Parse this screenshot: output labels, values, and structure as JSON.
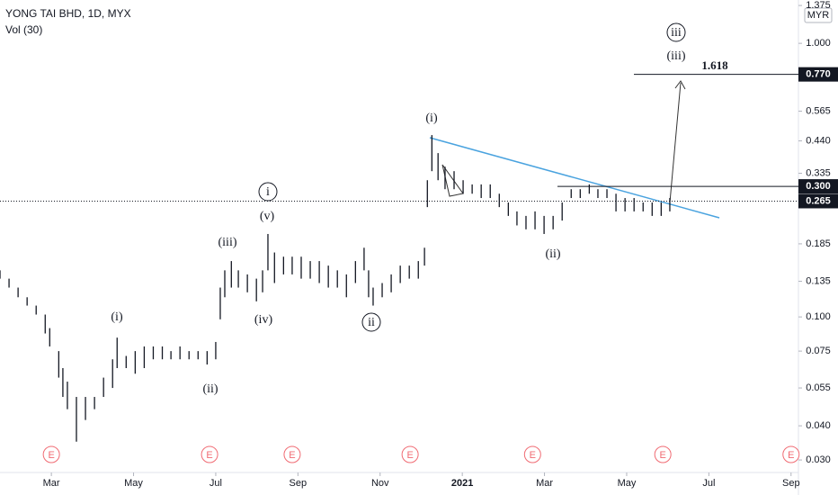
{
  "chart_data": {
    "type": "ohlc",
    "title": "YONG TAI BHD, 1D, MYX",
    "subtitle": "Vol (30)",
    "currency": "MYR",
    "log_scale": true,
    "grid": false,
    "color": "#131722",
    "trend_color": "#4aa3df",
    "ylim": [
      0.027,
      1.44
    ],
    "yticks": [
      {
        "value": 1.375,
        "label": "1.375"
      },
      {
        "value": 1,
        "label": "1.000"
      },
      0.565,
      {
        "value": 0.44,
        "label": "0.440"
      },
      0.335,
      0.185,
      0.135,
      {
        "value": 0.1,
        "label": "0.100"
      },
      0.075,
      0.055,
      {
        "value": 0.04,
        "label": "0.040"
      },
      {
        "value": 0.03,
        "label": "0.030"
      }
    ],
    "xlim": [
      0.75,
      20.18
    ],
    "xticks": [
      {
        "value": 2,
        "label": "Mar"
      },
      {
        "value": 4,
        "label": "May"
      },
      {
        "value": 6,
        "label": "Jul"
      },
      {
        "value": 8,
        "label": "Sep"
      },
      {
        "value": 10,
        "label": "Nov"
      },
      {
        "value": 12,
        "label": "2021"
      },
      {
        "value": 14,
        "label": "Mar"
      },
      {
        "value": 16,
        "label": "May"
      },
      {
        "value": 18,
        "label": "Jul"
      },
      {
        "value": 20,
        "label": "Sep"
      }
    ],
    "x": [
      0.75,
      0.97,
      1.19,
      1.41,
      1.63,
      1.85,
      1.96,
      2.18,
      2.28,
      2.39,
      2.61,
      2.83,
      3.05,
      3.27,
      3.49,
      3.6,
      3.82,
      4.04,
      4.26,
      4.48,
      4.7,
      4.91,
      5.13,
      5.35,
      5.57,
      5.79,
      6.0,
      6.11,
      6.22,
      6.38,
      6.55,
      6.77,
      6.99,
      7.14,
      7.27,
      7.43,
      7.65,
      7.86,
      8.08,
      8.3,
      8.52,
      8.74,
      8.96,
      9.18,
      9.4,
      9.61,
      9.72,
      9.83,
      10.05,
      10.27,
      10.49,
      10.71,
      10.93,
      11.08,
      11.15,
      11.26,
      11.41,
      11.58,
      11.8,
      12.02,
      12.24,
      12.46,
      12.68,
      12.9,
      13.12,
      13.33,
      13.55,
      13.77,
      13.99,
      14.21,
      14.43,
      14.65,
      14.87,
      15.09,
      15.3,
      15.52,
      15.74,
      15.96,
      16.18,
      16.4,
      16.62,
      16.84,
      17.05
    ],
    "high": [
      0.148,
      0.138,
      0.128,
      0.118,
      0.11,
      0.102,
      0.091,
      0.075,
      0.065,
      0.058,
      0.051,
      0.051,
      0.051,
      0.06,
      0.07,
      0.084,
      0.072,
      0.075,
      0.078,
      0.078,
      0.078,
      0.075,
      0.078,
      0.075,
      0.075,
      0.075,
      0.081,
      0.128,
      0.148,
      0.16,
      0.148,
      0.143,
      0.138,
      0.148,
      0.201,
      0.172,
      0.166,
      0.166,
      0.166,
      0.16,
      0.16,
      0.154,
      0.148,
      0.143,
      0.16,
      0.179,
      0.148,
      0.128,
      0.133,
      0.143,
      0.154,
      0.154,
      0.16,
      0.179,
      0.316,
      0.462,
      0.397,
      0.354,
      0.341,
      0.316,
      0.305,
      0.305,
      0.305,
      0.282,
      0.262,
      0.243,
      0.234,
      0.243,
      0.234,
      0.234,
      0.262,
      0.293,
      0.293,
      0.305,
      0.293,
      0.293,
      0.282,
      0.272,
      0.272,
      0.262,
      0.262,
      0.262,
      0.272
    ],
    "low": [
      0.138,
      0.128,
      0.118,
      0.11,
      0.102,
      0.087,
      0.078,
      0.06,
      0.051,
      0.046,
      0.035,
      0.042,
      0.046,
      0.051,
      0.055,
      0.065,
      0.065,
      0.062,
      0.065,
      0.07,
      0.07,
      0.07,
      0.07,
      0.07,
      0.07,
      0.067,
      0.07,
      0.098,
      0.118,
      0.128,
      0.128,
      0.123,
      0.114,
      0.123,
      0.148,
      0.133,
      0.143,
      0.143,
      0.138,
      0.138,
      0.133,
      0.128,
      0.128,
      0.118,
      0.133,
      0.148,
      0.118,
      0.11,
      0.118,
      0.123,
      0.133,
      0.138,
      0.138,
      0.154,
      0.252,
      0.341,
      0.316,
      0.293,
      0.293,
      0.282,
      0.282,
      0.272,
      0.272,
      0.252,
      0.234,
      0.216,
      0.209,
      0.209,
      0.201,
      0.209,
      0.225,
      0.272,
      0.272,
      0.282,
      0.272,
      0.272,
      0.243,
      0.243,
      0.243,
      0.243,
      0.234,
      0.234,
      0.243
    ],
    "levels": [
      {
        "value": 0.77,
        "label": "0.770"
      },
      {
        "value": 0.3,
        "label": "0.300"
      },
      {
        "value": 0.265,
        "label": "0.265"
      }
    ],
    "earnings_label": "E",
    "earnings_x": [
      2.0,
      5.85,
      7.86,
      10.73,
      13.71,
      16.88,
      20.0
    ],
    "annotations": [
      "(i)",
      "(ii)",
      "(iii)",
      "(iv)",
      "(v)",
      "i",
      "ii",
      "(i)",
      "(ii)",
      "(iii)",
      "iii",
      "1.618"
    ]
  }
}
